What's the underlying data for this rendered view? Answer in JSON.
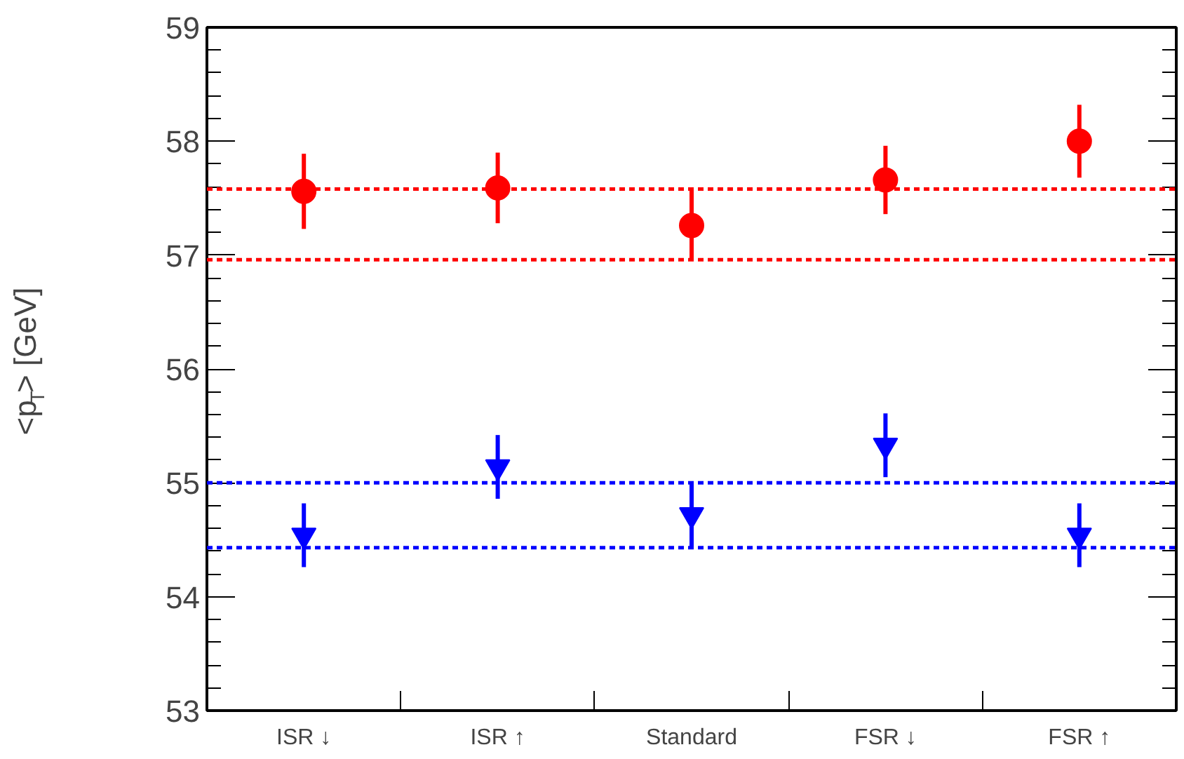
{
  "chart_data": {
    "type": "scatter",
    "ylabel": "<p$_{T}$> [GeV]",
    "categories": [
      "ISR ↓",
      "ISR ↑",
      "Standard",
      "FSR ↓",
      "FSR ↑"
    ],
    "series": [
      {
        "color": "#ff0000",
        "marker": "circle",
        "values": [
          57.56,
          57.59,
          57.26,
          57.66,
          58.0
        ],
        "errors": [
          0.33,
          0.31,
          0.31,
          0.3,
          0.32
        ]
      },
      {
        "color": "#0000ff",
        "marker": "triangle",
        "values": [
          54.54,
          55.14,
          54.72,
          55.33,
          54.54
        ],
        "errors": [
          0.28,
          0.28,
          0.29,
          0.28,
          0.28
        ]
      }
    ],
    "ref_lines": [
      {
        "axis": "y",
        "value": 57.58,
        "color": "#ff0000",
        "line_style": "dashed"
      },
      {
        "axis": "y",
        "value": 56.96,
        "color": "#ff0000",
        "line_style": "dashed"
      },
      {
        "axis": "y",
        "value": 55.0,
        "color": "#0000ff",
        "line_style": "dashed"
      },
      {
        "axis": "y",
        "value": 54.43,
        "color": "#0000ff",
        "line_style": "dashed"
      }
    ],
    "ylim": [
      53,
      59
    ],
    "yticks": [
      53,
      54,
      55,
      56,
      57,
      58,
      59
    ],
    "grid": false
  }
}
